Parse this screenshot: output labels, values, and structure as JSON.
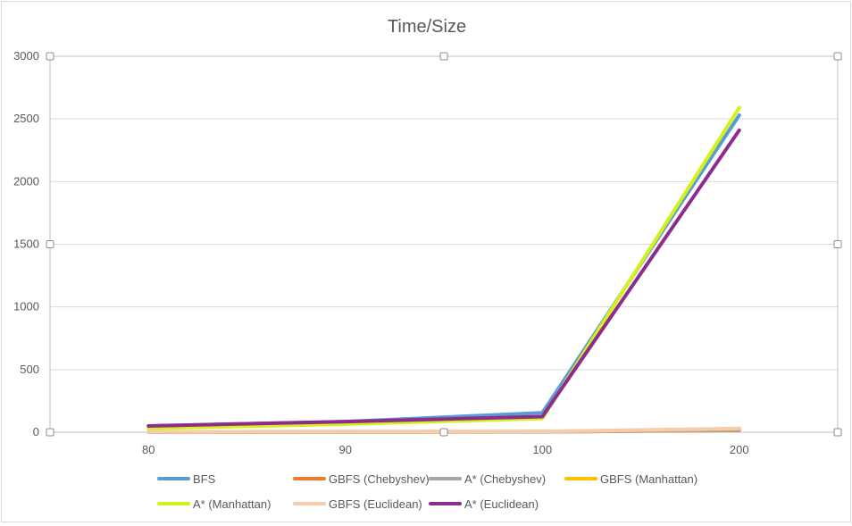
{
  "chart_data": {
    "type": "line",
    "title": "Time/Size",
    "xlabel": "",
    "ylabel": "",
    "categories": [
      "80",
      "90",
      "100",
      "200"
    ],
    "ylim": [
      0,
      3000
    ],
    "yticks": [
      0,
      500,
      1000,
      1500,
      2000,
      2500,
      3000
    ],
    "grid": true,
    "legend_position": "bottom",
    "series": [
      {
        "name": "BFS",
        "color": "#5b9bd5",
        "values": [
          50,
          85,
          155,
          2530
        ]
      },
      {
        "name": "GBFS (Chebyshev)",
        "color": "#ed7d31",
        "values": [
          2,
          2,
          3,
          15
        ]
      },
      {
        "name": "A* (Chebyshev)",
        "color": "#a5a5a5",
        "values": [
          2,
          2,
          3,
          18
        ]
      },
      {
        "name": "GBFS (Manhattan)",
        "color": "#ffc000",
        "values": [
          3,
          4,
          5,
          28
        ]
      },
      {
        "name": "A* (Manhattan)",
        "color": "#d4f21a",
        "values": [
          30,
          65,
          110,
          2590
        ]
      },
      {
        "name": "GBFS (Euclidean)",
        "color": "#f8cbad",
        "values": [
          4,
          5,
          6,
          30
        ]
      },
      {
        "name": "A* (Euclidean)",
        "color": "#8e2c8e",
        "values": [
          50,
          85,
          125,
          2410
        ]
      }
    ]
  }
}
